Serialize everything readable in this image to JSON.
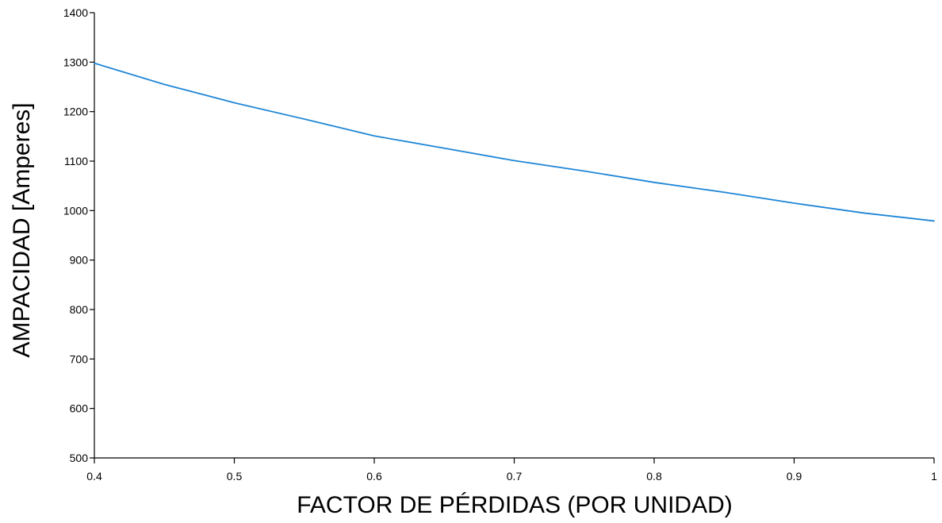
{
  "chart_data": {
    "type": "line",
    "title": "",
    "xlabel": "FACTOR DE PÉRDIDAS (POR UNIDAD)",
    "ylabel": "AMPACIDAD [Amperes]",
    "xlim": [
      0.4,
      1
    ],
    "ylim": [
      500,
      1400
    ],
    "xticks": [
      "0.4",
      "0.5",
      "0.6",
      "0.7",
      "0.8",
      "0.9",
      "1"
    ],
    "yticks": [
      "500",
      "600",
      "700",
      "800",
      "900",
      "1000",
      "1100",
      "1200",
      "1300",
      "1400"
    ],
    "grid": false,
    "legend": "none",
    "series": [
      {
        "color": "#1f86d6",
        "x": [
          0.4,
          0.45,
          0.5,
          0.55,
          0.6,
          0.65,
          0.7,
          0.75,
          0.8,
          0.85,
          0.9,
          0.95,
          1.0
        ],
        "y": [
          1298,
          1255,
          1218,
          1185,
          1151,
          1126,
          1101,
          1080,
          1057,
          1037,
          1015,
          995,
          979
        ]
      }
    ]
  }
}
